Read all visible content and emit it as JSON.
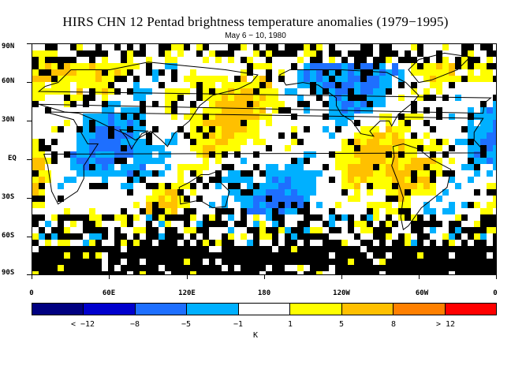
{
  "title": "HIRS CHN 12 Pentad brightness temperature anomalies (1979−1995)",
  "subtitle": "May 6 − 10, 1980",
  "lat_labels": [
    "90N",
    "60N",
    "30N",
    "EQ",
    "30S",
    "60S",
    "90S"
  ],
  "lon_labels": [
    "0",
    "60E",
    "120E",
    "180",
    "120W",
    "60W",
    "0"
  ],
  "colorbar": {
    "colors": [
      "#000080",
      "#0000cd",
      "#1e6fff",
      "#00b0ff",
      "#ffffff",
      "#ffff00",
      "#ffc000",
      "#ff8000",
      "#ff0000"
    ],
    "labels": [
      "< −12",
      "−8",
      "−5",
      "−1",
      "1",
      "5",
      "8",
      "> 12"
    ],
    "units": "K"
  },
  "colors": {
    "missing": "#000000",
    "coastline": "#000000"
  }
}
